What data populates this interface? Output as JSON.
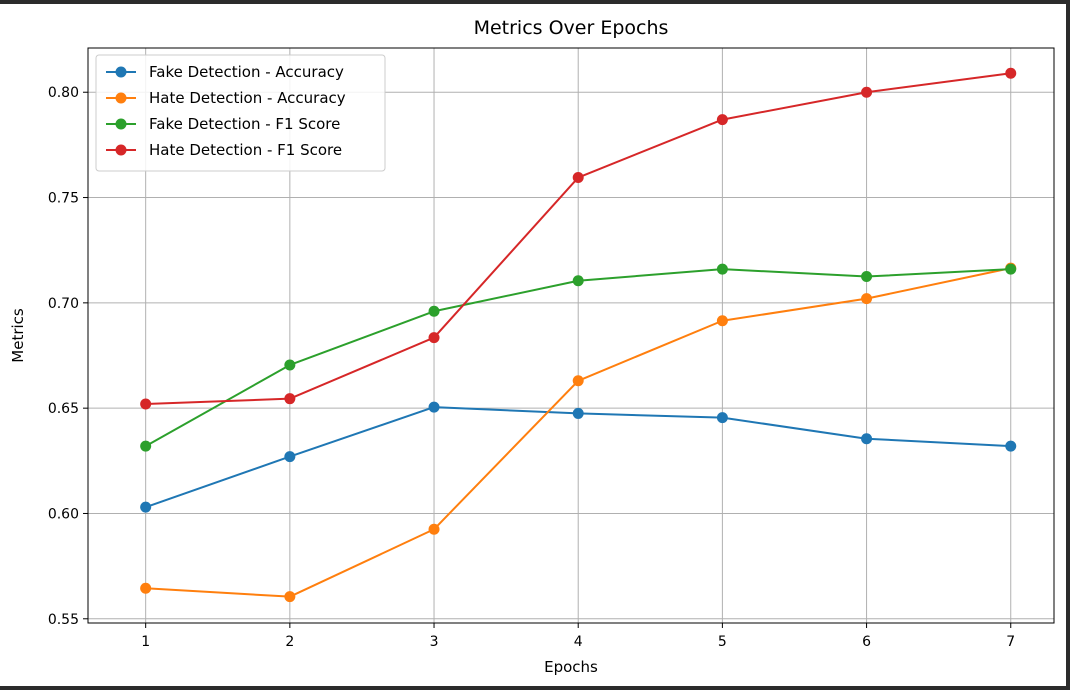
{
  "chart_data": {
    "type": "line",
    "title": "Metrics Over Epochs",
    "xlabel": "Epochs",
    "ylabel": "Metrics",
    "x": [
      1,
      2,
      3,
      4,
      5,
      6,
      7
    ],
    "x_ticks": [
      "1",
      "2",
      "3",
      "4",
      "5",
      "6",
      "7"
    ],
    "y_ticks": [
      "0.55",
      "0.60",
      "0.65",
      "0.70",
      "0.75",
      "0.80"
    ],
    "y_tick_values": [
      0.55,
      0.6,
      0.65,
      0.7,
      0.75,
      0.8
    ],
    "xlim": [
      0.6,
      7.3
    ],
    "ylim": [
      0.548,
      0.821
    ],
    "grid": true,
    "legend_position": "top-left",
    "marker": "circle",
    "series": [
      {
        "name": "Fake Detection - Accuracy",
        "color": "#1f77b4",
        "values": [
          0.603,
          0.627,
          0.6505,
          0.6475,
          0.6455,
          0.6355,
          0.632
        ]
      },
      {
        "name": "Hate Detection - Accuracy",
        "color": "#ff7f0e",
        "values": [
          0.5645,
          0.5605,
          0.5925,
          0.663,
          0.6915,
          0.702,
          0.7165
        ]
      },
      {
        "name": "Fake Detection - F1 Score",
        "color": "#2ca02c",
        "values": [
          0.632,
          0.6705,
          0.696,
          0.7105,
          0.716,
          0.7125,
          0.716
        ]
      },
      {
        "name": "Hate Detection - F1 Score",
        "color": "#d62728",
        "values": [
          0.652,
          0.6545,
          0.6835,
          0.7595,
          0.787,
          0.8,
          0.809
        ]
      }
    ]
  }
}
